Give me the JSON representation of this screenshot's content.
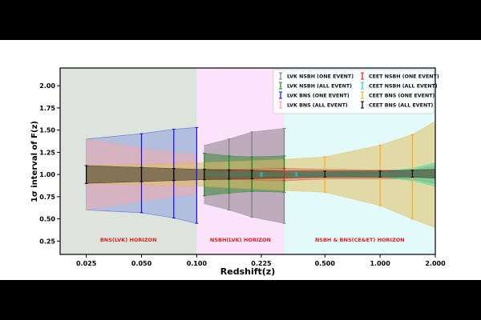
{
  "chart_data": {
    "type": "area",
    "title": "",
    "xlabel": "Redshift(z)",
    "ylabel": "1σ interval of F(z)",
    "x_scale": "log",
    "xlim": [
      0.018,
      2.0
    ],
    "ylim": [
      0.1,
      2.2
    ],
    "x_ticks": [
      0.025,
      0.05,
      0.1,
      0.225,
      0.5,
      1.0,
      2.0
    ],
    "x_tick_labels": [
      "0.025",
      "0.050",
      "0.100",
      "0.225",
      "0.500",
      "1.000",
      "2.000"
    ],
    "y_ticks": [
      0.25,
      0.5,
      0.75,
      1.0,
      1.25,
      1.5,
      1.75,
      2.0
    ],
    "y_tick_labels": [
      "0.25",
      "0.50",
      "0.75",
      "1.00",
      "1.25",
      "1.50",
      "1.75",
      "2.00"
    ],
    "grid": false,
    "legend_position": "top-right",
    "regions": [
      {
        "label": "BNS(LVK) HORIZON",
        "x_start": 0.018,
        "x_end": 0.1,
        "color": "#dce4dc"
      },
      {
        "label": "NSBH(LVK) HORIZON",
        "x_start": 0.1,
        "x_end": 0.3,
        "color": "#fbe3fb"
      },
      {
        "label": "NSBH & BNS(CE&ET) HORIZON",
        "x_start": 0.3,
        "x_end": 2.0,
        "color": "#e1fafa"
      }
    ],
    "series": [
      {
        "name": "LVK NSBH (ONE EVENT)",
        "color": "#7f7f7f",
        "fill": "#8c7f8c",
        "x": [
          0.11,
          0.15,
          0.2,
          0.3
        ],
        "lower": [
          0.67,
          0.6,
          0.52,
          0.45
        ],
        "upper": [
          1.33,
          1.4,
          1.48,
          1.52
        ]
      },
      {
        "name": "LVK NSBH (ALL EVENT)",
        "color": "#1a8a1a",
        "fill": "#3a8a3a",
        "x": [
          0.11,
          0.15,
          0.2,
          0.3
        ],
        "lower": [
          0.76,
          0.79,
          0.81,
          0.8
        ],
        "upper": [
          1.24,
          1.21,
          1.2,
          1.21
        ]
      },
      {
        "name": "LVK BNS (ONE EVENT)",
        "color": "#1111dd",
        "fill": "#8f9fe0",
        "x": [
          0.025,
          0.05,
          0.075,
          0.1
        ],
        "lower": [
          0.6,
          0.57,
          0.51,
          0.45
        ],
        "upper": [
          1.4,
          1.46,
          1.51,
          1.53
        ]
      },
      {
        "name": "LVK BNS (ALL EVENT)",
        "color": "#f4a0a0",
        "fill": "#f2aaaa",
        "x": [
          0.025,
          0.05,
          0.075,
          0.1
        ],
        "lower": [
          0.6,
          0.7,
          0.75,
          0.78
        ],
        "upper": [
          1.4,
          1.3,
          1.25,
          1.22
        ]
      },
      {
        "name": "CEET NSBH (ONE EVENT)",
        "color": "#e02020",
        "fill": "#d98060",
        "x": [
          0.11,
          0.3,
          0.5,
          1.0,
          1.5,
          2.0
        ],
        "lower": [
          0.95,
          0.93,
          0.95,
          0.95,
          0.95,
          0.9
        ],
        "upper": [
          1.05,
          1.07,
          1.06,
          1.05,
          1.05,
          1.1
        ]
      },
      {
        "name": "CEET NSBH (ALL EVENT)",
        "color": "#20d0d0",
        "fill": "#40e0a0",
        "x": [
          0.11,
          0.3,
          0.5,
          1.0,
          1.5,
          2.0
        ],
        "lower": [
          0.98,
          0.985,
          0.985,
          0.975,
          0.93,
          0.87
        ],
        "upper": [
          1.02,
          1.015,
          1.02,
          1.03,
          1.07,
          1.13
        ]
      },
      {
        "name": "CEET BNS (ONE EVENT)",
        "color": "#ffaa20",
        "fill": "#e0c060",
        "x": [
          0.025,
          0.1,
          0.3,
          0.5,
          1.0,
          1.5,
          2.0
        ],
        "lower": [
          0.9,
          0.87,
          0.82,
          0.8,
          0.65,
          0.5,
          0.4
        ],
        "upper": [
          1.1,
          1.13,
          1.17,
          1.2,
          1.33,
          1.45,
          1.6
        ]
      },
      {
        "name": "CEET BNS (ALL EVENT)",
        "color": "#000000",
        "fill": "#3a3a2a",
        "x": [
          0.025,
          0.1,
          0.3,
          0.5,
          1.0,
          1.5,
          2.0
        ],
        "lower": [
          0.9,
          0.94,
          0.96,
          0.97,
          0.97,
          0.97,
          0.96
        ],
        "upper": [
          1.1,
          1.06,
          1.04,
          1.04,
          1.04,
          1.05,
          1.06
        ]
      }
    ],
    "errorbars": [
      {
        "series": "LVK BNS (ONE EVENT)",
        "x": [
          0.05,
          0.075,
          0.1
        ]
      },
      {
        "series": "LVK NSBH (ONE EVENT)",
        "x": [
          0.15,
          0.2,
          0.3
        ]
      },
      {
        "series": "LVK NSBH (ALL EVENT)",
        "x": [
          0.11,
          0.15,
          0.2,
          0.3
        ]
      },
      {
        "series": "CEET BNS (ONE EVENT)",
        "x": [
          0.5,
          1.0,
          1.5
        ]
      },
      {
        "series": "CEET NSBH (ONE EVENT)",
        "x": [
          0.3
        ]
      },
      {
        "series": "CEET NSBH (ALL EVENT)",
        "x": [
          0.225,
          0.35
        ]
      },
      {
        "series": "CEET BNS (ALL EVENT)",
        "x": [
          0.025,
          0.05,
          0.075,
          0.11,
          0.15,
          0.2,
          0.5,
          1.0,
          1.5
        ]
      }
    ]
  }
}
